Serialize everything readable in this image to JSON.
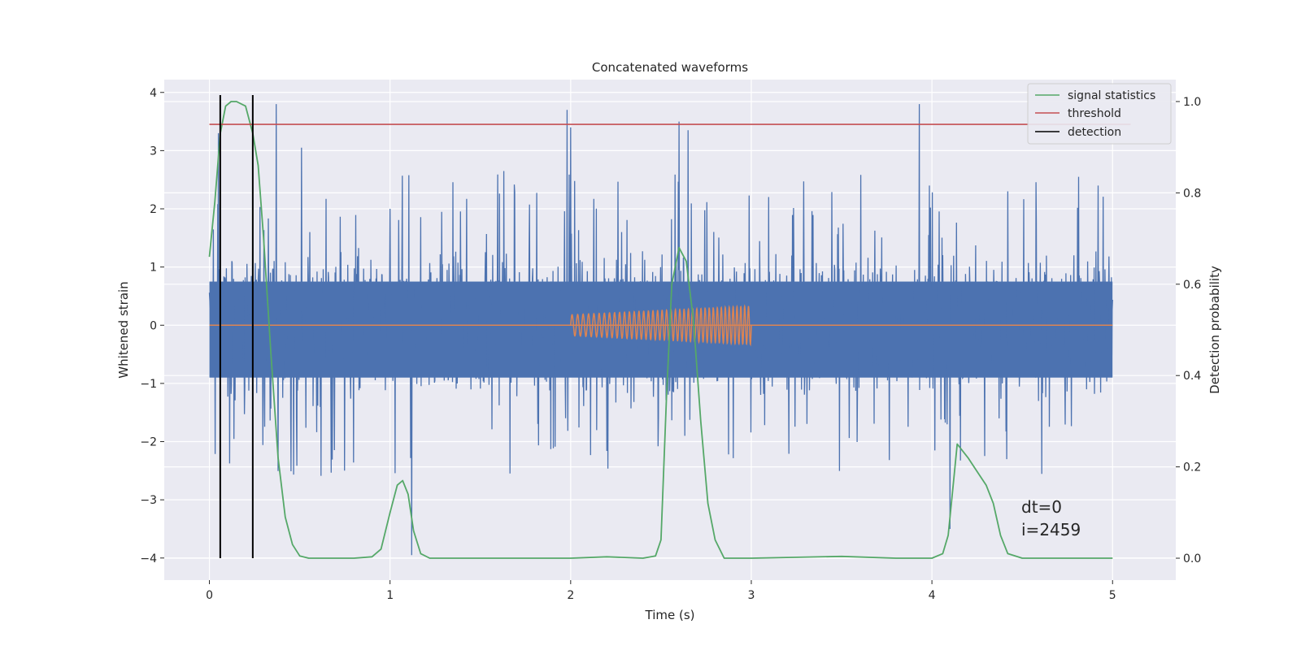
{
  "chart_data": {
    "type": "line",
    "title": "Concatenated waveforms",
    "xlabel": "Time (s)",
    "ylabel": "Whitened strain",
    "y2label": "Detection probability",
    "xlim": [
      -0.25,
      5.35
    ],
    "ylim": [
      -4.38,
      4.22
    ],
    "y2lim": [
      -0.048,
      1.048
    ],
    "xticks": [
      0,
      1,
      2,
      3,
      4,
      5
    ],
    "yticks": [
      -4,
      -3,
      -2,
      -1,
      0,
      1,
      2,
      3,
      4
    ],
    "y2ticks": [
      0.0,
      0.2,
      0.4,
      0.6,
      0.8,
      1.0
    ],
    "grid": true,
    "legend_position": "top-right",
    "legend": [
      {
        "name": "signal statistics",
        "color": "#55a868"
      },
      {
        "name": "threshold",
        "color": "#c44e52"
      },
      {
        "name": "detection",
        "color": "#000000"
      }
    ],
    "series": [
      {
        "name": "whitened strain",
        "color": "#4c72b0",
        "x_range": [
          0,
          5
        ],
        "samples": 2500,
        "band": [
          -0.9,
          0.75
        ],
        "peaks": [
          {
            "x": 0.05,
            "y": 3.3
          },
          {
            "x": 0.24,
            "y": 2.65
          },
          {
            "x": 0.37,
            "y": 3.8
          },
          {
            "x": 0.51,
            "y": 3.05
          },
          {
            "x": 1.0,
            "y": 2.0
          },
          {
            "x": 1.12,
            "y": -3.95
          },
          {
            "x": 1.63,
            "y": 2.65
          },
          {
            "x": 1.98,
            "y": 3.7
          },
          {
            "x": 2.0,
            "y": 3.4
          },
          {
            "x": 2.6,
            "y": 3.5
          },
          {
            "x": 2.65,
            "y": 3.35
          },
          {
            "x": 3.93,
            "y": 3.8
          },
          {
            "x": 4.1,
            "y": -3.5
          },
          {
            "x": 4.42,
            "y": 2.3
          },
          {
            "x": 4.92,
            "y": 2.4
          }
        ]
      },
      {
        "name": "injected waveform",
        "color": "#dd8452",
        "x_range": [
          0,
          5
        ],
        "chirp_range": [
          2.0,
          3.0
        ],
        "chirp_amplitude": [
          0.18,
          0.33
        ],
        "chirp_cycles": 40
      },
      {
        "name": "signal statistics",
        "color": "#55a868",
        "axis": "right",
        "x": [
          0.0,
          0.03,
          0.06,
          0.09,
          0.12,
          0.15,
          0.2,
          0.24,
          0.27,
          0.3,
          0.34,
          0.38,
          0.42,
          0.46,
          0.5,
          0.55,
          0.6,
          0.8,
          0.9,
          0.95,
          1.0,
          1.04,
          1.07,
          1.1,
          1.13,
          1.17,
          1.22,
          1.4,
          2.0,
          2.2,
          2.4,
          2.47,
          2.5,
          2.53,
          2.56,
          2.6,
          2.64,
          2.68,
          2.72,
          2.76,
          2.8,
          2.85,
          3.0,
          3.5,
          3.8,
          4.0,
          4.06,
          4.09,
          4.12,
          4.14,
          4.2,
          4.25,
          4.3,
          4.34,
          4.38,
          4.42,
          4.5,
          5.0
        ],
        "y": [
          0.66,
          0.78,
          0.93,
          0.99,
          1.0,
          1.0,
          0.99,
          0.93,
          0.86,
          0.7,
          0.45,
          0.22,
          0.09,
          0.03,
          0.005,
          0.0,
          0.0,
          0.0,
          0.003,
          0.02,
          0.1,
          0.16,
          0.17,
          0.14,
          0.06,
          0.01,
          0.0,
          0.0,
          0.0,
          0.003,
          0.0,
          0.005,
          0.04,
          0.35,
          0.6,
          0.68,
          0.65,
          0.52,
          0.3,
          0.12,
          0.04,
          0.0,
          0.0,
          0.004,
          0.0,
          0.0,
          0.01,
          0.05,
          0.17,
          0.25,
          0.22,
          0.19,
          0.16,
          0.12,
          0.05,
          0.01,
          0.0,
          0.0
        ]
      },
      {
        "name": "threshold",
        "color": "#c44e52",
        "axis": "right",
        "x": [
          0,
          5.1
        ],
        "y": [
          0.95,
          0.95
        ]
      }
    ],
    "detections": [
      0.06,
      0.24
    ],
    "annotation": [
      "dt=0",
      "i=2459"
    ]
  }
}
